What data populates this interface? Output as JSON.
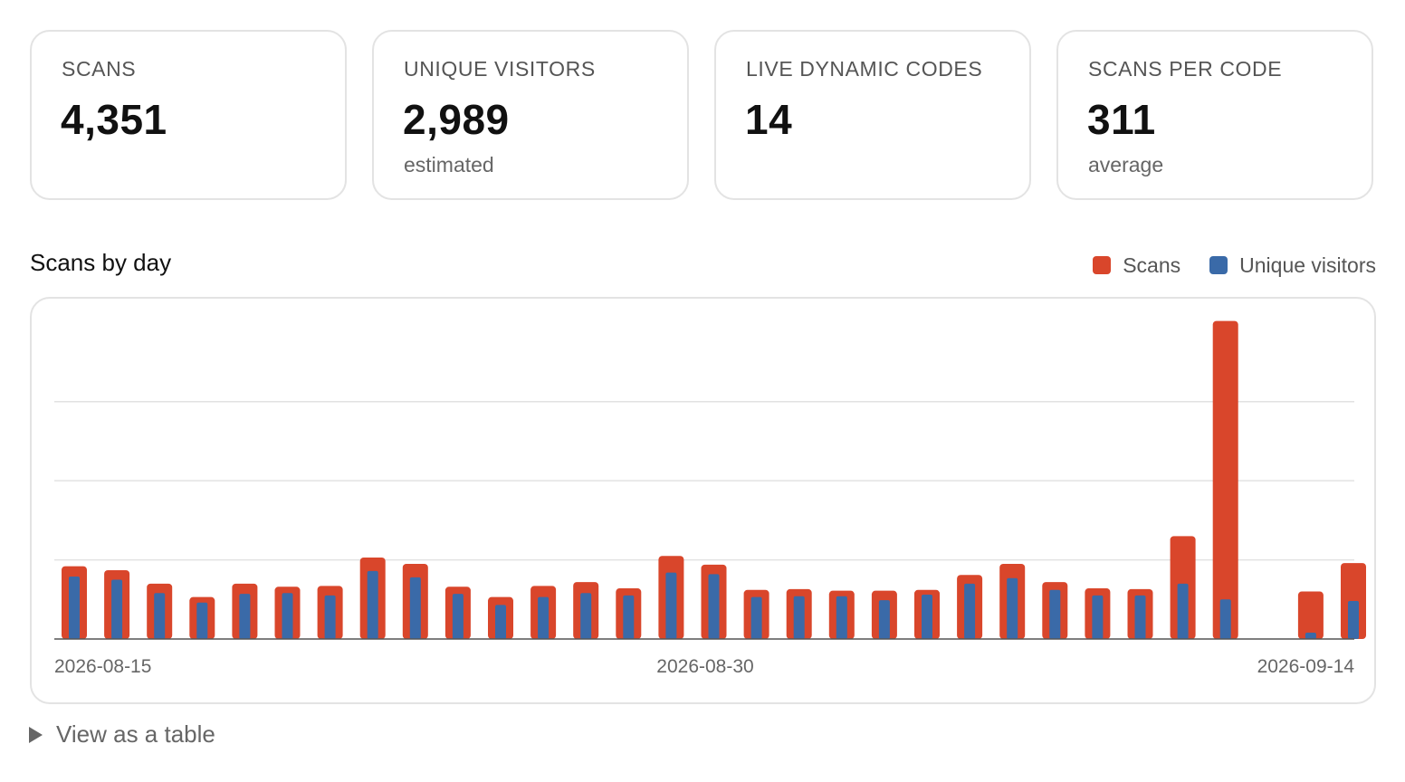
{
  "stats": [
    {
      "label": "SCANS",
      "value": "4,351",
      "sub": ""
    },
    {
      "label": "UNIQUE VISITORS",
      "value": "2,989",
      "sub": "estimated"
    },
    {
      "label": "LIVE DYNAMIC CODES",
      "value": "14",
      "sub": ""
    },
    {
      "label": "SCANS PER CODE",
      "value": "311",
      "sub": "average"
    }
  ],
  "chart": {
    "title": "Scans by day",
    "legend": [
      {
        "name": "Scans",
        "color": "#d9462b"
      },
      {
        "name": "Unique visitors",
        "color": "#3a6aa8"
      }
    ]
  },
  "chart_data": {
    "type": "bar",
    "title": "Scans by day",
    "xlabel": "",
    "ylabel": "",
    "x_tick_labels": [
      "2026-08-15",
      "2026-08-30",
      "2026-09-14"
    ],
    "categories": [
      "2026-08-15",
      "2026-08-16",
      "2026-08-17",
      "2026-08-18",
      "2026-08-19",
      "2026-08-20",
      "2026-08-21",
      "2026-08-22",
      "2026-08-23",
      "2026-08-24",
      "2026-08-25",
      "2026-08-26",
      "2026-08-27",
      "2026-08-28",
      "2026-08-29",
      "2026-08-30",
      "2026-08-31",
      "2026-09-01",
      "2026-09-02",
      "2026-09-03",
      "2026-09-04",
      "2026-09-05",
      "2026-09-06",
      "2026-09-07",
      "2026-09-08",
      "2026-09-09",
      "2026-09-10",
      "2026-09-11",
      "2026-09-12",
      "2026-09-13",
      "2026-09-14"
    ],
    "series": [
      {
        "name": "Scans",
        "color": "#d9462b",
        "values": [
          92,
          87,
          70,
          53,
          70,
          66,
          67,
          103,
          95,
          66,
          53,
          67,
          72,
          64,
          105,
          94,
          62,
          63,
          61,
          61,
          62,
          81,
          95,
          72,
          64,
          63,
          130,
          402,
          0,
          60,
          96
        ]
      },
      {
        "name": "Unique visitors",
        "color": "#3a6aa8",
        "values": [
          79,
          75,
          58,
          46,
          57,
          58,
          55,
          86,
          78,
          57,
          43,
          53,
          58,
          55,
          84,
          82,
          53,
          54,
          54,
          49,
          56,
          70,
          77,
          62,
          55,
          55,
          70,
          50,
          0,
          8,
          48
        ]
      }
    ],
    "ylim": [
      0,
      405
    ],
    "grid": true,
    "legend_position": "top-right"
  },
  "toggle": {
    "label": "View as a table"
  }
}
